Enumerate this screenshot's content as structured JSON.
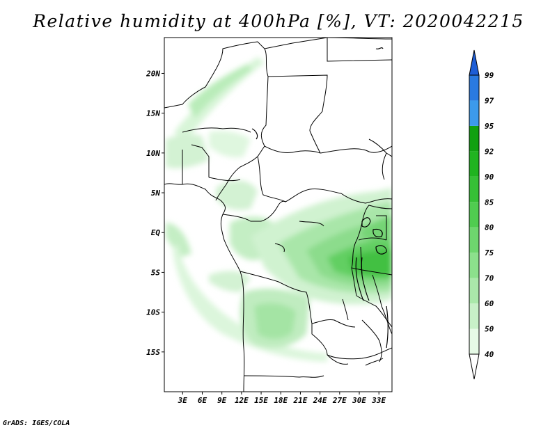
{
  "title": "Relative humidity at 400hPa [%], VT: 2020042215",
  "credit": "GrADS: IGES/COLA",
  "map": {
    "variable": "Relative humidity",
    "level": "400hPa",
    "units": "%",
    "valid_time": "2020042215",
    "lat_labels": [
      "20N",
      "15N",
      "10N",
      "5N",
      "EQ",
      "5S",
      "10S",
      "15S"
    ],
    "lat_values": [
      20,
      15,
      10,
      5,
      0,
      -5,
      -10,
      -15
    ],
    "lon_labels": [
      "3E",
      "6E",
      "9E",
      "12E",
      "15E",
      "18E",
      "21E",
      "24E",
      "27E",
      "30E",
      "33E"
    ],
    "lon_values": [
      3,
      6,
      9,
      12,
      15,
      18,
      21,
      24,
      27,
      30,
      33
    ],
    "lat_range": [
      -20,
      24.5
    ],
    "lon_range": [
      0.2,
      35
    ]
  },
  "colorbar": {
    "levels": [
      "40",
      "50",
      "60",
      "70",
      "75",
      "80",
      "85",
      "90",
      "92",
      "95",
      "97",
      "99"
    ],
    "colors": [
      "#ffffff",
      "#e6fae6",
      "#c8f0c8",
      "#aae8aa",
      "#8ce08c",
      "#6ed66e",
      "#50cc50",
      "#36c036",
      "#20b420",
      "#11a011",
      "#3c9aec",
      "#2a7ae0",
      "#1e5ed6"
    ]
  }
}
